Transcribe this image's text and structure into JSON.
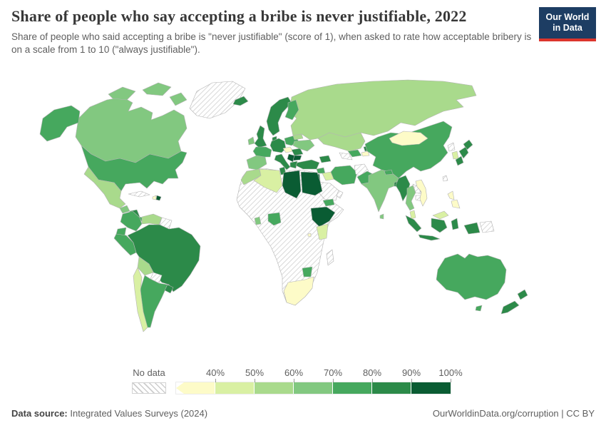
{
  "header": {
    "title": "Share of people who say accepting a bribe is never justifiable, 2022",
    "subtitle": "Share of people who said accepting a bribe is \"never justifiable\" (score of 1), when asked to rate how acceptable bribery is on a scale from 1 to 10 (\"always justifiable\").",
    "logo": {
      "line1": "Our World",
      "line2": "in Data",
      "bg": "#1d3d63",
      "accent": "#dc352c"
    }
  },
  "legend": {
    "no_data_label": "No data",
    "tick_labels": [
      "40%",
      "50%",
      "60%",
      "70%",
      "80%",
      "90%",
      "100%"
    ]
  },
  "footer": {
    "source_label": "Data source:",
    "source_value": " Integrated Values Surveys (2024)",
    "link": "OurWorldinData.org/corruption | CC BY"
  },
  "map": {
    "ocean": "#ffffff",
    "border": "#b3b3b3",
    "no_data_border": "#c8c8c8"
  },
  "chart_data": {
    "type": "choropleth-map",
    "title": "Share of people who say accepting a bribe is never justifiable",
    "year": "2022",
    "unit": "%",
    "legend_position": "bottom",
    "legend_bins": [
      {
        "label": "No data",
        "color": "hatch"
      },
      {
        "label": "<40%",
        "color": "#fdfbc8"
      },
      {
        "label": "40-50%",
        "color": "#d9f0a3"
      },
      {
        "label": "50-60%",
        "color": "#a9da8c"
      },
      {
        "label": "60-70%",
        "color": "#82c880"
      },
      {
        "label": "70-80%",
        "color": "#46a85e"
      },
      {
        "label": "80-90%",
        "color": "#2c8a49"
      },
      {
        "label": "90-100%",
        "color": "#0a5c33"
      }
    ],
    "regions": [
      {
        "id": "greenland",
        "name": "Greenland",
        "bin": "No data"
      },
      {
        "id": "canada",
        "name": "Canada",
        "bin": "60-70%"
      },
      {
        "id": "usa",
        "name": "United States",
        "bin": "70-80%"
      },
      {
        "id": "mexico",
        "name": "Mexico",
        "bin": "50-60%"
      },
      {
        "id": "guatemala",
        "name": "Guatemala",
        "bin": "60-70%"
      },
      {
        "id": "nicaragua",
        "name": "Nicaragua",
        "bin": "80-90%"
      },
      {
        "id": "panama",
        "name": "Panama & Costa Rica",
        "bin": "70-80%"
      },
      {
        "id": "cuba",
        "name": "Cuba",
        "bin": "No data"
      },
      {
        "id": "haiti",
        "name": "Haiti",
        "bin": "<40%"
      },
      {
        "id": "dominican-republic",
        "name": "Dominican Republic",
        "bin": "90-100%"
      },
      {
        "id": "colombia",
        "name": "Colombia",
        "bin": "70-80%"
      },
      {
        "id": "venezuela",
        "name": "Venezuela",
        "bin": "50-60%"
      },
      {
        "id": "guyanas",
        "name": "Guyana & Suriname",
        "bin": "No data"
      },
      {
        "id": "ecuador",
        "name": "Ecuador",
        "bin": "70-80%"
      },
      {
        "id": "peru",
        "name": "Peru",
        "bin": "70-80%"
      },
      {
        "id": "brazil",
        "name": "Brazil",
        "bin": "80-90%"
      },
      {
        "id": "bolivia",
        "name": "Bolivia",
        "bin": "50-60%"
      },
      {
        "id": "paraguay",
        "name": "Paraguay",
        "bin": "No data"
      },
      {
        "id": "chile",
        "name": "Chile",
        "bin": "40-50%"
      },
      {
        "id": "argentina",
        "name": "Argentina",
        "bin": "70-80%"
      },
      {
        "id": "uruguay",
        "name": "Uruguay",
        "bin": "80-90%"
      },
      {
        "id": "iceland",
        "name": "Iceland",
        "bin": "80-90%"
      },
      {
        "id": "ireland",
        "name": "Ireland",
        "bin": "60-70%"
      },
      {
        "id": "uk",
        "name": "United Kingdom",
        "bin": "80-90%"
      },
      {
        "id": "scandinavia",
        "name": "Norway & Sweden",
        "bin": "80-90%"
      },
      {
        "id": "finland",
        "name": "Finland",
        "bin": "70-80%"
      },
      {
        "id": "denmark",
        "name": "Denmark",
        "bin": "80-90%"
      },
      {
        "id": "iberia",
        "name": "Spain & Portugal",
        "bin": "60-70%"
      },
      {
        "id": "france",
        "name": "France",
        "bin": "70-80%"
      },
      {
        "id": "germany",
        "name": "Germany & Central Europe",
        "bin": "80-90%"
      },
      {
        "id": "italy",
        "name": "Italy",
        "bin": "80-90%"
      },
      {
        "id": "poland",
        "name": "Poland & Baltics",
        "bin": "70-80%"
      },
      {
        "id": "czechia-slovakia",
        "name": "Czechia & Slovakia",
        "bin": "<40%"
      },
      {
        "id": "romania",
        "name": "Romania",
        "bin": "80-90%"
      },
      {
        "id": "serbia",
        "name": "Serbia & W. Balkans",
        "bin": "90-100%"
      },
      {
        "id": "bulgaria",
        "name": "Bulgaria",
        "bin": "90-100%"
      },
      {
        "id": "greece",
        "name": "Greece",
        "bin": "80-90%"
      },
      {
        "id": "ukraine",
        "name": "Ukraine",
        "bin": "60-70%"
      },
      {
        "id": "belarus",
        "name": "Belarus",
        "bin": "50-60%"
      },
      {
        "id": "russia",
        "name": "Russia",
        "bin": "50-60%"
      },
      {
        "id": "kazakhstan",
        "name": "Kazakhstan",
        "bin": "50-60%"
      },
      {
        "id": "uzbekistan",
        "name": "Uzbekistan",
        "bin": "70-80%"
      },
      {
        "id": "turkmenistan",
        "name": "Turkmenistan",
        "bin": "No data"
      },
      {
        "id": "kyrgyzstan",
        "name": "Kyrgyzstan",
        "bin": "80-90%"
      },
      {
        "id": "tajikistan",
        "name": "Tajikistan",
        "bin": "<40%"
      },
      {
        "id": "caucasus",
        "name": "Armenia, Azerbaijan & Georgia",
        "bin": "80-90%"
      },
      {
        "id": "turkey",
        "name": "Turkey",
        "bin": "80-90%"
      },
      {
        "id": "syria",
        "name": "Syria",
        "bin": "70-80%"
      },
      {
        "id": "iraq",
        "name": "Iraq",
        "bin": "40-50%"
      },
      {
        "id": "iran",
        "name": "Iran",
        "bin": "70-80%"
      },
      {
        "id": "jordan",
        "name": "Israel & Jordan",
        "bin": "90-100%"
      },
      {
        "id": "saudi-arabia",
        "name": "Saudi Arabia",
        "bin": "No data"
      },
      {
        "id": "yemen",
        "name": "Yemen",
        "bin": "70-80%"
      },
      {
        "id": "oman",
        "name": "Oman",
        "bin": "No data"
      },
      {
        "id": "afghanistan",
        "name": "Afghanistan",
        "bin": "No data"
      },
      {
        "id": "pakistan",
        "name": "Pakistan",
        "bin": "70-80%"
      },
      {
        "id": "india",
        "name": "India",
        "bin": "60-70%"
      },
      {
        "id": "sri-lanka",
        "name": "Sri Lanka",
        "bin": "60-70%"
      },
      {
        "id": "nepal",
        "name": "Nepal",
        "bin": "70-80%"
      },
      {
        "id": "bangladesh",
        "name": "Bangladesh",
        "bin": "80-90%"
      },
      {
        "id": "myanmar",
        "name": "Myanmar",
        "bin": "80-90%"
      },
      {
        "id": "thailand",
        "name": "Thailand",
        "bin": "60-70%"
      },
      {
        "id": "laos",
        "name": "Laos",
        "bin": "No data"
      },
      {
        "id": "cambodia",
        "name": "Cambodia",
        "bin": "No data"
      },
      {
        "id": "vietnam",
        "name": "Vietnam",
        "bin": "<40%"
      },
      {
        "id": "china",
        "name": "China",
        "bin": "70-80%"
      },
      {
        "id": "mongolia",
        "name": "Mongolia",
        "bin": "<40%"
      },
      {
        "id": "north-korea",
        "name": "North Korea",
        "bin": "No data"
      },
      {
        "id": "south-korea",
        "name": "South Korea",
        "bin": "40-50%"
      },
      {
        "id": "japan",
        "name": "Japan",
        "bin": "80-90%"
      },
      {
        "id": "taiwan",
        "name": "Taiwan",
        "bin": "No data"
      },
      {
        "id": "philippines",
        "name": "Philippines",
        "bin": "<40%"
      },
      {
        "id": "malaysia",
        "name": "Malaysia",
        "bin": "40-50%"
      },
      {
        "id": "indonesia",
        "name": "Indonesia",
        "bin": "80-90%"
      },
      {
        "id": "papua-new-guinea",
        "name": "Papua New Guinea",
        "bin": "No data"
      },
      {
        "id": "morocco",
        "name": "Morocco",
        "bin": "50-60%"
      },
      {
        "id": "algeria",
        "name": "Algeria",
        "bin": "40-50%"
      },
      {
        "id": "tunisia",
        "name": "Tunisia",
        "bin": "80-90%"
      },
      {
        "id": "libya",
        "name": "Libya",
        "bin": "90-100%"
      },
      {
        "id": "egypt",
        "name": "Egypt",
        "bin": "90-100%"
      },
      {
        "id": "ghana",
        "name": "Ghana",
        "bin": "60-70%"
      },
      {
        "id": "nigeria",
        "name": "Nigeria",
        "bin": "70-80%"
      },
      {
        "id": "ethiopia",
        "name": "Ethiopia",
        "bin": "90-100%"
      },
      {
        "id": "kenya",
        "name": "Kenya",
        "bin": "40-50%"
      },
      {
        "id": "rwanda",
        "name": "Rwanda",
        "bin": "<40%"
      },
      {
        "id": "zimbabwe",
        "name": "Zimbabwe",
        "bin": "70-80%"
      },
      {
        "id": "south-africa",
        "name": "South Africa",
        "bin": "<40%"
      },
      {
        "id": "africa-other",
        "name": "Other Africa",
        "bin": "No data"
      },
      {
        "id": "madagascar",
        "name": "Madagascar",
        "bin": "No data"
      },
      {
        "id": "australia",
        "name": "Australia",
        "bin": "70-80%"
      },
      {
        "id": "new-zealand",
        "name": "New Zealand",
        "bin": "80-90%"
      }
    ]
  }
}
